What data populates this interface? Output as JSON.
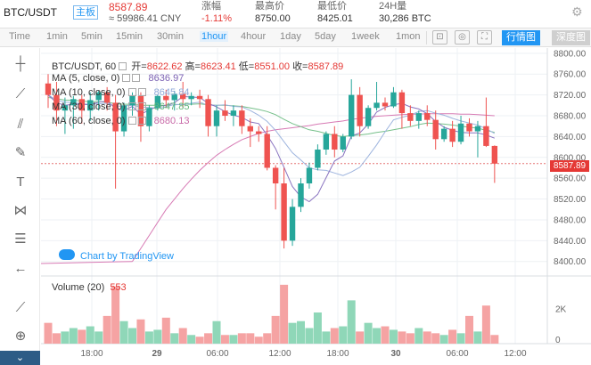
{
  "header": {
    "symbol": "BTC/USDT",
    "badge": "主板",
    "price": "8587.89",
    "cny": "≈ 59986.41 CNY",
    "stats": [
      {
        "label": "涨幅",
        "value": "-1.11%",
        "red": true
      },
      {
        "label": "最高价",
        "value": "8750.00",
        "red": false
      },
      {
        "label": "最低价",
        "value": "8425.01",
        "red": false
      },
      {
        "label": "24H量",
        "value": "30,286 BTC",
        "red": false
      }
    ],
    "settings_icon": "gear-icon"
  },
  "toolbar": {
    "intervals": [
      "Time",
      "1min",
      "5min",
      "15min",
      "30min",
      "1hour",
      "4hour",
      "1day",
      "5day",
      "1week",
      "1mon"
    ],
    "active_interval": "1hour",
    "buttons": [
      "行情图",
      "深度图"
    ],
    "icon_buttons": [
      "candle-type-icon",
      "indicators-icon",
      "fullscreen-icon",
      "settings-icon"
    ]
  },
  "tools": [
    "crosshair-icon",
    "trendline-icon",
    "fib-icon",
    "brush-icon",
    "text-icon",
    "pattern-icon",
    "measure-icon",
    "back-arrow-icon",
    "ruler-icon",
    "zoom-icon"
  ],
  "legend": {
    "title": "BTC/USDT, 60",
    "open_label": "开=",
    "open": "8622.62",
    "high_label": "高=",
    "high": "8623.41",
    "low_label": "低=",
    "low": "8551.00",
    "close_label": "收=",
    "close": "8587.89",
    "ma": [
      {
        "name": "MA (5, close, 0)",
        "value": "8636.97",
        "color": "#7b61b3"
      },
      {
        "name": "MA (10, close, 0)",
        "value": "8645.84",
        "color": "#8fa9d8"
      },
      {
        "name": "MA (30, close, 0)",
        "value": "8647.85",
        "color": "#62b87a"
      },
      {
        "name": "MA (60, close, 0)",
        "value": "8680.13",
        "color": "#c86aa8"
      }
    ]
  },
  "volume": {
    "label": "Volume (20)",
    "value": "553"
  },
  "watermark": "Chart by TradingView",
  "last_price_label": "8587.89",
  "colors": {
    "up": "#26a69a",
    "down": "#ef5350",
    "up_fill": "#8fd7b8",
    "down_fill": "#f5a3a3"
  },
  "chart_data": {
    "type": "candlestick",
    "y_ticks": [
      "8800.00",
      "8760.00",
      "8720.00",
      "8680.00",
      "8640.00",
      "8600.00",
      "8560.00",
      "8520.00",
      "8480.00",
      "8440.00",
      "8400.00"
    ],
    "ylim": [
      8379,
      8810
    ],
    "x_ticks": [
      "18:00",
      "29",
      "06:00",
      "12:00",
      "18:00",
      "30",
      "06:00",
      "12:00"
    ],
    "volume_ticks": [
      "2K",
      "0"
    ],
    "candles": [
      {
        "o": 8742,
        "h": 8760,
        "l": 8695,
        "c": 8720
      },
      {
        "o": 8720,
        "h": 8745,
        "l": 8660,
        "c": 8690
      },
      {
        "o": 8690,
        "h": 8715,
        "l": 8645,
        "c": 8700
      },
      {
        "o": 8700,
        "h": 8718,
        "l": 8655,
        "c": 8712
      },
      {
        "o": 8712,
        "h": 8720,
        "l": 8665,
        "c": 8690
      },
      {
        "o": 8690,
        "h": 8725,
        "l": 8670,
        "c": 8710
      },
      {
        "o": 8710,
        "h": 8728,
        "l": 8690,
        "c": 8725
      },
      {
        "o": 8725,
        "h": 8735,
        "l": 8690,
        "c": 8705
      },
      {
        "o": 8705,
        "h": 8720,
        "l": 8540,
        "c": 8650
      },
      {
        "o": 8650,
        "h": 8705,
        "l": 8640,
        "c": 8700
      },
      {
        "o": 8700,
        "h": 8725,
        "l": 8680,
        "c": 8718
      },
      {
        "o": 8718,
        "h": 8725,
        "l": 8630,
        "c": 8660
      },
      {
        "o": 8660,
        "h": 8700,
        "l": 8650,
        "c": 8695
      },
      {
        "o": 8695,
        "h": 8720,
        "l": 8690,
        "c": 8718
      },
      {
        "o": 8718,
        "h": 8730,
        "l": 8695,
        "c": 8710
      },
      {
        "o": 8710,
        "h": 8728,
        "l": 8690,
        "c": 8722
      },
      {
        "o": 8722,
        "h": 8745,
        "l": 8695,
        "c": 8712
      },
      {
        "o": 8712,
        "h": 8725,
        "l": 8700,
        "c": 8718
      },
      {
        "o": 8718,
        "h": 8730,
        "l": 8695,
        "c": 8712
      },
      {
        "o": 8712,
        "h": 8720,
        "l": 8640,
        "c": 8660
      },
      {
        "o": 8660,
        "h": 8700,
        "l": 8640,
        "c": 8690
      },
      {
        "o": 8690,
        "h": 8710,
        "l": 8670,
        "c": 8680
      },
      {
        "o": 8680,
        "h": 8700,
        "l": 8660,
        "c": 8690
      },
      {
        "o": 8690,
        "h": 8700,
        "l": 8645,
        "c": 8660
      },
      {
        "o": 8660,
        "h": 8675,
        "l": 8620,
        "c": 8650
      },
      {
        "o": 8650,
        "h": 8660,
        "l": 8630,
        "c": 8645
      },
      {
        "o": 8645,
        "h": 8660,
        "l": 8575,
        "c": 8580
      },
      {
        "o": 8580,
        "h": 8585,
        "l": 8500,
        "c": 8550
      },
      {
        "o": 8550,
        "h": 8580,
        "l": 8425,
        "c": 8440
      },
      {
        "o": 8440,
        "h": 8520,
        "l": 8430,
        "c": 8505
      },
      {
        "o": 8505,
        "h": 8560,
        "l": 8495,
        "c": 8550
      },
      {
        "o": 8550,
        "h": 8590,
        "l": 8540,
        "c": 8580
      },
      {
        "o": 8580,
        "h": 8625,
        "l": 8575,
        "c": 8615
      },
      {
        "o": 8615,
        "h": 8650,
        "l": 8605,
        "c": 8645
      },
      {
        "o": 8645,
        "h": 8660,
        "l": 8600,
        "c": 8615
      },
      {
        "o": 8615,
        "h": 8645,
        "l": 8610,
        "c": 8640
      },
      {
        "o": 8640,
        "h": 8750,
        "l": 8635,
        "c": 8720
      },
      {
        "o": 8720,
        "h": 8735,
        "l": 8640,
        "c": 8660
      },
      {
        "o": 8660,
        "h": 8700,
        "l": 8655,
        "c": 8695
      },
      {
        "o": 8695,
        "h": 8745,
        "l": 8690,
        "c": 8705
      },
      {
        "o": 8705,
        "h": 8715,
        "l": 8690,
        "c": 8698
      },
      {
        "o": 8698,
        "h": 8735,
        "l": 8695,
        "c": 8725
      },
      {
        "o": 8725,
        "h": 8730,
        "l": 8655,
        "c": 8685
      },
      {
        "o": 8685,
        "h": 8700,
        "l": 8660,
        "c": 8670
      },
      {
        "o": 8670,
        "h": 8690,
        "l": 8655,
        "c": 8685
      },
      {
        "o": 8685,
        "h": 8700,
        "l": 8660,
        "c": 8672
      },
      {
        "o": 8672,
        "h": 8690,
        "l": 8615,
        "c": 8635
      },
      {
        "o": 8635,
        "h": 8660,
        "l": 8630,
        "c": 8655
      },
      {
        "o": 8655,
        "h": 8670,
        "l": 8620,
        "c": 8630
      },
      {
        "o": 8630,
        "h": 8680,
        "l": 8625,
        "c": 8665
      },
      {
        "o": 8665,
        "h": 8675,
        "l": 8640,
        "c": 8650
      },
      {
        "o": 8650,
        "h": 8670,
        "l": 8600,
        "c": 8660
      },
      {
        "o": 8660,
        "h": 8715,
        "l": 8620,
        "c": 8622
      },
      {
        "o": 8622,
        "h": 8623,
        "l": 8551,
        "c": 8588
      }
    ],
    "volumes": [
      1.2,
      0.6,
      0.7,
      0.9,
      0.8,
      1.0,
      0.7,
      1.6,
      3.3,
      1.3,
      0.9,
      1.4,
      0.7,
      0.8,
      1.5,
      0.6,
      0.9,
      0.5,
      0.4,
      0.6,
      1.3,
      0.5,
      0.5,
      0.6,
      0.6,
      0.4,
      0.6,
      1.6,
      3.4,
      1.2,
      1.3,
      0.9,
      1.8,
      0.7,
      0.9,
      1.0,
      2.5,
      0.7,
      1.2,
      0.9,
      1.0,
      0.8,
      0.7,
      0.6,
      0.9,
      0.7,
      0.6,
      0.5,
      0.8,
      0.6,
      1.6,
      0.7,
      2.2,
      0.5
    ],
    "volume_max": 3.6,
    "ma5": [
      8720,
      8705,
      8700,
      8702,
      8702,
      8701,
      8706,
      8708,
      8694,
      8690,
      8698,
      8683,
      8691,
      8698,
      8700,
      8705,
      8717,
      8716,
      8715,
      8704,
      8697,
      8688,
      8681,
      8677,
      8668,
      8665,
      8643,
      8617,
      8581,
      8544,
      8524,
      8515,
      8529,
      8561,
      8593,
      8603,
      8641,
      8647,
      8664,
      8687,
      8696,
      8701,
      8704,
      8697,
      8693,
      8684,
      8669,
      8658,
      8652,
      8648,
      8647,
      8647,
      8643,
      8637
    ],
    "ma10": [
      8720,
      8710,
      8706,
      8705,
      8703,
      8702,
      8703,
      8704,
      8698,
      8699,
      8700,
      8697,
      8696,
      8694,
      8697,
      8702,
      8701,
      8704,
      8706,
      8700,
      8700,
      8701,
      8698,
      8697,
      8690,
      8681,
      8669,
      8652,
      8630,
      8609,
      8595,
      8580,
      8576,
      8575,
      8570,
      8565,
      8572,
      8581,
      8602,
      8624,
      8649,
      8672,
      8677,
      8681,
      8688,
      8690,
      8685,
      8681,
      8675,
      8670,
      8666,
      8662,
      8655,
      8646
    ],
    "ma30": [
      8715,
      8713,
      8710,
      8710,
      8708,
      8707,
      8707,
      8706,
      8703,
      8702,
      8702,
      8700,
      8700,
      8700,
      8700,
      8701,
      8702,
      8702,
      8703,
      8701,
      8700,
      8700,
      8699,
      8698,
      8695,
      8692,
      8688,
      8682,
      8673,
      8665,
      8659,
      8653,
      8650,
      8646,
      8642,
      8640,
      8642,
      8643,
      8645,
      8648,
      8650,
      8653,
      8656,
      8659,
      8663,
      8666,
      8665,
      8664,
      8662,
      8660,
      8658,
      8656,
      8652,
      8648
    ],
    "ma60": [
      null,
      null,
      null,
      null,
      null,
      null,
      null,
      null,
      null,
      null,
      8400,
      8425,
      8450,
      8475,
      8500,
      8520,
      8540,
      8558,
      8575,
      8590,
      8604,
      8615,
      8625,
      8634,
      8640,
      8646,
      8650,
      8653,
      8655,
      8657,
      8659,
      8661,
      8664,
      8666,
      8668,
      8670,
      8673,
      8675,
      8677,
      8679,
      8680,
      8681,
      8682,
      8683,
      8683,
      8684,
      8684,
      8684,
      8684,
      8683,
      8683,
      8682,
      8681,
      8680
    ]
  }
}
